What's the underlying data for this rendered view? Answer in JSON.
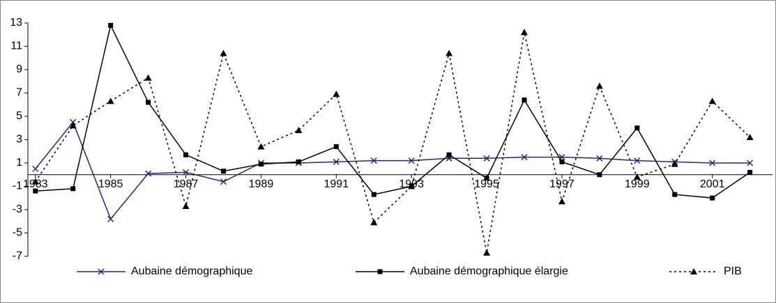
{
  "chart_data": {
    "type": "line",
    "x": [
      1983,
      1984,
      1985,
      1986,
      1987,
      1988,
      1989,
      1990,
      1991,
      1992,
      1993,
      1994,
      1995,
      1996,
      1997,
      1998,
      1999,
      2000,
      2001,
      2002
    ],
    "xlim": [
      1982.8,
      2002.6
    ],
    "xticks": [
      1983,
      1985,
      1987,
      1989,
      1991,
      1993,
      1995,
      1997,
      1999,
      2001
    ],
    "ylim": [
      -7,
      13
    ],
    "yticks": [
      -7,
      -5,
      -3,
      -1,
      1,
      3,
      5,
      7,
      9,
      11,
      13
    ],
    "legend": "bottom",
    "series": [
      {
        "name": "Aubaine démographique",
        "color": "#1f2a7a",
        "marker": "x",
        "dash": "solid",
        "values": [
          0.5,
          4.5,
          -3.8,
          0.1,
          0.2,
          -0.6,
          1.0,
          1.0,
          1.1,
          1.2,
          1.2,
          1.4,
          1.4,
          1.5,
          1.5,
          1.4,
          1.2,
          1.1,
          1.0,
          1.0
        ]
      },
      {
        "name": "Aubaine démographique élargie",
        "color": "#000000",
        "marker": "square",
        "dash": "solid",
        "values": [
          -1.4,
          -1.2,
          12.8,
          6.2,
          1.7,
          0.3,
          0.9,
          1.1,
          2.4,
          -1.7,
          -1.0,
          1.7,
          -0.3,
          6.4,
          1.1,
          0.0,
          4.0,
          -1.7,
          -2.0,
          0.2
        ]
      },
      {
        "name": "PIB",
        "color": "#000000",
        "marker": "triangle",
        "dash": "dotted",
        "values": [
          -0.6,
          4.2,
          6.3,
          8.3,
          -2.7,
          10.4,
          2.4,
          3.8,
          6.9,
          -4.1,
          -1.0,
          10.4,
          -6.7,
          12.2,
          -2.3,
          7.6,
          -0.2,
          0.9,
          6.3,
          3.2
        ]
      }
    ]
  }
}
